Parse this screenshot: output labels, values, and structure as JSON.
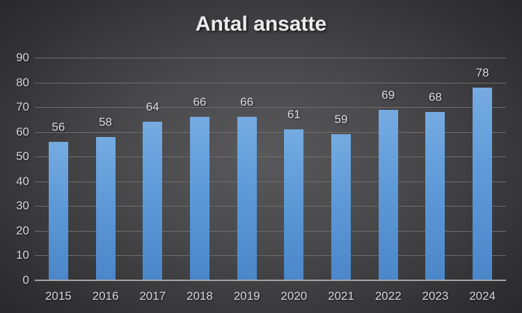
{
  "chart_data": {
    "type": "bar",
    "title": "Antal ansatte",
    "categories": [
      "2015",
      "2016",
      "2017",
      "2018",
      "2019",
      "2020",
      "2021",
      "2022",
      "2023",
      "2024"
    ],
    "values": [
      56,
      58,
      64,
      66,
      66,
      61,
      59,
      69,
      68,
      78
    ],
    "xlabel": "",
    "ylabel": "",
    "ylim": [
      0,
      90
    ],
    "yticks": [
      0,
      10,
      20,
      30,
      40,
      50,
      60,
      70,
      80,
      90
    ],
    "grid": true,
    "legend": "none",
    "data_labels_shown": true,
    "colors": {
      "bar_top": "#75abe1",
      "bar_bottom": "#4b86c9",
      "gridline": "#6e6e6e",
      "axis_line": "#a6a6a6",
      "text": "#d6d6d6",
      "title_text": "#ebebeb",
      "background_center": "#59595b",
      "background_edge": "#242427"
    }
  }
}
